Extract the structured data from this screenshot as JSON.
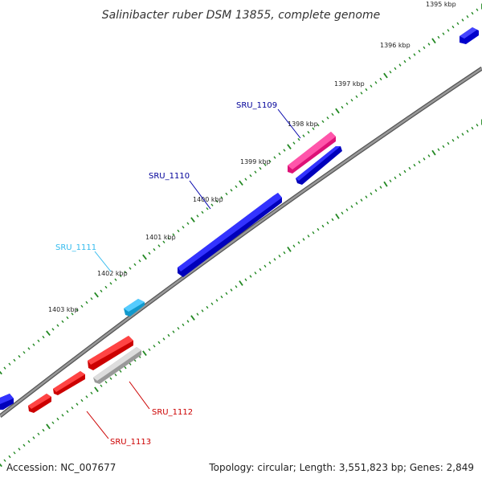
{
  "title": "Salinibacter ruber DSM 13855, complete genome",
  "footer": {
    "accession": "Accession: NC_007677",
    "summary": "Topology: circular; Length: 3,551,823 bp; Genes: 2,849"
  },
  "tick_labels": [
    "1395 kbp",
    "1396 kbp",
    "1397 kbp",
    "1398 kbp",
    "1399 kbp",
    "1400 kbp",
    "1401 kbp",
    "1402 kbp",
    "1403 kbp"
  ],
  "gene_labels": {
    "sru_1109": "SRU_1109",
    "sru_1110": "SRU_1110",
    "sru_1111": "SRU_1111",
    "sru_1112": "SRU_1112",
    "sru_1113": "SRU_1113"
  },
  "colors": {
    "forward_blue": "#0000ee",
    "forward_cyan": "#33bbee",
    "rna_pink": "#ee2288",
    "reverse_red": "#ee0000",
    "pseudo_gray": "#bbbbbb",
    "backbone": "#888888",
    "tick_green": "#228822"
  }
}
